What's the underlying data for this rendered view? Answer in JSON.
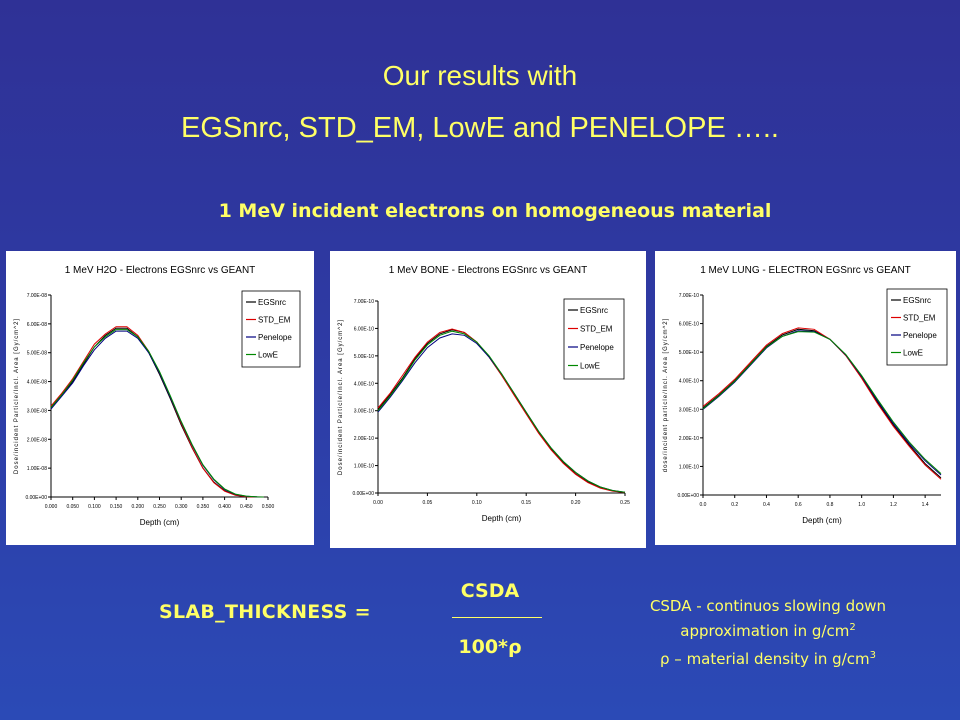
{
  "header": {
    "title_line1": "Our results with",
    "title_line2": "EGSnrc, STD_EM, LowE and PENELOPE …..",
    "subtitle": "1 MeV incident electrons on homogeneous material"
  },
  "colors": {
    "accent_text": "#ffff66",
    "background": "#2e3aa3"
  },
  "chart_data": [
    {
      "type": "line",
      "title": "1 MeV H2O - Electrons EGSnrc vs GEANT",
      "xlabel": "Depth (cm)",
      "ylabel": "Dose/incident Particle/Incl. Area [Gy/cm^2]",
      "xlim": [
        0,
        0.5
      ],
      "ylim": [
        0,
        7e-08
      ],
      "x_ticks": [
        "0.000",
        "0.050",
        "0.100",
        "0.150",
        "0.200",
        "0.250",
        "0.300",
        "0.350",
        "0.400",
        "0.450",
        "0.500"
      ],
      "y_ticks": [
        "0.00E+00",
        "1.00E-08",
        "2.00E-08",
        "3.00E-08",
        "4.00E-08",
        "5.00E-08",
        "6.00E-08",
        "7.00E-08"
      ],
      "grid": false,
      "legend": "top-right",
      "x": [
        0.0,
        0.025,
        0.05,
        0.075,
        0.1,
        0.125,
        0.15,
        0.175,
        0.2,
        0.225,
        0.25,
        0.275,
        0.3,
        0.325,
        0.35,
        0.375,
        0.4,
        0.425,
        0.45,
        0.475,
        0.49
      ],
      "series": [
        {
          "name": "EGSnrc",
          "values": [
            3.1e-08,
            3.55e-08,
            4e-08,
            4.6e-08,
            5.2e-08,
            5.6e-08,
            5.85e-08,
            5.85e-08,
            5.55e-08,
            5e-08,
            4.25e-08,
            3.4e-08,
            2.5e-08,
            1.7e-08,
            1e-08,
            5.2e-09,
            2.2e-09,
            7e-10,
            1.5e-10,
            2e-11,
            0
          ]
        },
        {
          "name": "STD_EM",
          "values": [
            3.15e-08,
            3.6e-08,
            4.1e-08,
            4.7e-08,
            5.3e-08,
            5.65e-08,
            5.9e-08,
            5.9e-08,
            5.6e-08,
            5.05e-08,
            4.3e-08,
            3.45e-08,
            2.55e-08,
            1.72e-08,
            1e-08,
            5e-09,
            2e-09,
            6e-10,
            1.2e-10,
            1e-11,
            0
          ]
        },
        {
          "name": "Penelope",
          "values": [
            3.05e-08,
            3.5e-08,
            3.95e-08,
            4.55e-08,
            5.1e-08,
            5.5e-08,
            5.75e-08,
            5.75e-08,
            5.5e-08,
            5e-08,
            4.3e-08,
            3.45e-08,
            2.6e-08,
            1.8e-08,
            1.1e-08,
            6e-09,
            2.6e-09,
            9e-10,
            2.5e-10,
            4e-11,
            0
          ]
        },
        {
          "name": "LowE",
          "values": [
            3.1e-08,
            3.55e-08,
            4.05e-08,
            4.65e-08,
            5.2e-08,
            5.55e-08,
            5.8e-08,
            5.8e-08,
            5.55e-08,
            5.05e-08,
            4.35e-08,
            3.5e-08,
            2.62e-08,
            1.82e-08,
            1.12e-08,
            6.2e-09,
            2.8e-09,
            1e-09,
            3e-10,
            5e-11,
            0
          ]
        }
      ]
    },
    {
      "type": "line",
      "title": "1 MeV BONE - Electrons EGSnrc vs GEANT",
      "xlabel": "Depth (cm)",
      "ylabel": "Dose/incident Particle/Incl. Area [Gy/cm^2]",
      "xlim": [
        0,
        0.25
      ],
      "ylim": [
        0,
        7e-10
      ],
      "x_ticks": [
        "0.00",
        "0.05",
        "0.10",
        "0.15",
        "0.20",
        "0.25"
      ],
      "y_ticks": [
        "0.00E+00",
        "1.00E-10",
        "2.00E-10",
        "3.00E-10",
        "4.00E-10",
        "5.00E-10",
        "6.00E-10",
        "7.00E-10"
      ],
      "grid": false,
      "legend": "top-right",
      "x": [
        0.0,
        0.0125,
        0.025,
        0.0375,
        0.05,
        0.0625,
        0.075,
        0.0875,
        0.1,
        0.1125,
        0.125,
        0.1375,
        0.15,
        0.1625,
        0.175,
        0.1875,
        0.2,
        0.2125,
        0.225,
        0.2375,
        0.25
      ],
      "series": [
        {
          "name": "EGSnrc",
          "values": [
            3.05e-10,
            3.6e-10,
            4.2e-10,
            4.9e-10,
            5.45e-10,
            5.8e-10,
            5.95e-10,
            5.85e-10,
            5.5e-10,
            4.95e-10,
            4.3e-10,
            3.6e-10,
            2.9e-10,
            2.2e-10,
            1.6e-10,
            1.1e-10,
            7e-11,
            4e-11,
            2e-11,
            8e-12,
            2e-12
          ]
        },
        {
          "name": "STD_EM",
          "values": [
            3.1e-10,
            3.65e-10,
            4.3e-10,
            4.95e-10,
            5.5e-10,
            5.85e-10,
            5.98e-10,
            5.85e-10,
            5.5e-10,
            4.95e-10,
            4.3e-10,
            3.58e-10,
            2.88e-10,
            2.18e-10,
            1.58e-10,
            1.08e-10,
            6.8e-11,
            3.8e-11,
            1.8e-11,
            7e-12,
            2e-12
          ]
        },
        {
          "name": "Penelope",
          "values": [
            2.95e-10,
            3.5e-10,
            4.1e-10,
            4.75e-10,
            5.3e-10,
            5.65e-10,
            5.8e-10,
            5.75e-10,
            5.45e-10,
            4.95e-10,
            4.35e-10,
            3.65e-10,
            2.95e-10,
            2.25e-10,
            1.65e-10,
            1.15e-10,
            7.5e-11,
            4.4e-11,
            2.2e-11,
            9e-12,
            3e-12
          ]
        },
        {
          "name": "LowE",
          "values": [
            3e-10,
            3.55e-10,
            4.15e-10,
            4.85e-10,
            5.4e-10,
            5.75e-10,
            5.9e-10,
            5.8e-10,
            5.5e-10,
            5e-10,
            4.35e-10,
            3.65e-10,
            2.95e-10,
            2.25e-10,
            1.65e-10,
            1.15e-10,
            7.5e-11,
            4.4e-11,
            2.2e-11,
            9e-12,
            3e-12
          ]
        }
      ]
    },
    {
      "type": "line",
      "title": "1 MeV LUNG - ELECTRON EGSnrc vs GEANT",
      "xlabel": "Depth (cm)",
      "ylabel": "dose/incident particle/Incl. Area [Gy/cm^2]",
      "xlim": [
        0,
        1.5
      ],
      "ylim": [
        0,
        7e-10
      ],
      "x_ticks": [
        "0.0",
        "0.2",
        "0.4",
        "0.6",
        "0.8",
        "1.0",
        "1.2",
        "1.4"
      ],
      "y_ticks": [
        "0.00E+00",
        "1.00E-10",
        "2.00E-10",
        "3.00E-10",
        "4.00E-10",
        "5.00E-10",
        "6.00E-10",
        "7.00E-10"
      ],
      "grid": false,
      "legend": "top-right",
      "x": [
        0.0,
        0.1,
        0.2,
        0.3,
        0.4,
        0.5,
        0.6,
        0.7,
        0.8,
        0.9,
        1.0,
        1.1,
        1.2,
        1.3,
        1.4,
        1.5
      ],
      "series": [
        {
          "name": "EGSnrc",
          "values": [
            3.05e-10,
            3.5e-10,
            4e-10,
            4.6e-10,
            5.2e-10,
            5.6e-10,
            5.8e-10,
            5.75e-10,
            5.45e-10,
            4.9e-10,
            4.1e-10,
            3.25e-10,
            2.45e-10,
            1.75e-10,
            1.1e-10,
            6e-11
          ]
        },
        {
          "name": "STD_EM",
          "values": [
            3.1e-10,
            3.55e-10,
            4.05e-10,
            4.65e-10,
            5.25e-10,
            5.65e-10,
            5.85e-10,
            5.8e-10,
            5.45e-10,
            4.88e-10,
            4.08e-10,
            3.2e-10,
            2.4e-10,
            1.7e-10,
            1.05e-10,
            5.5e-11
          ]
        },
        {
          "name": "Penelope",
          "values": [
            3e-10,
            3.45e-10,
            3.95e-10,
            4.55e-10,
            5.15e-10,
            5.55e-10,
            5.75e-10,
            5.72e-10,
            5.45e-10,
            4.9e-10,
            4.15e-10,
            3.3e-10,
            2.5e-10,
            1.8e-10,
            1.2e-10,
            7e-11
          ]
        },
        {
          "name": "LowE",
          "values": [
            3.02e-10,
            3.48e-10,
            3.98e-10,
            4.58e-10,
            5.18e-10,
            5.55e-10,
            5.72e-10,
            5.7e-10,
            5.45e-10,
            4.92e-10,
            4.18e-10,
            3.35e-10,
            2.55e-10,
            1.85e-10,
            1.25e-10,
            7.5e-11
          ]
        }
      ]
    }
  ],
  "series_colors": [
    "#000000",
    "#dd0000",
    "#000080",
    "#008800"
  ],
  "formula": {
    "label": "SLAB_THICKNESS   =",
    "numerator": "CSDA",
    "denominator": "100*ρ"
  },
  "notes": {
    "csda_line": "CSDA - continuos slowing down approximation in g/cm",
    "rho_line": "ρ – material density in g/cm",
    "sup2": "2",
    "sup3": "3"
  }
}
